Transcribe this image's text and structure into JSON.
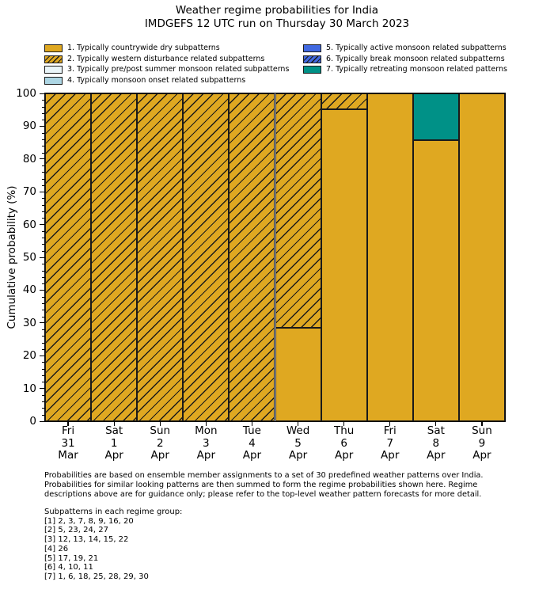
{
  "footnote": "Probabilities are based on ensemble member assignments to a set of 30 predefined weather patterns over India.\nProbabilities for similar looking patterns are then summed to form the regime probabilities shown here. Regime\ndescriptions above are for guidance only; please refer to the top-level weather pattern forecasts for more detail.",
  "subpatterns": "Subpatterns in each regime group:\n[1] 2, 3, 7, 8, 9, 16, 20\n[2] 5, 23, 24, 27\n[3] 12, 13, 14, 15, 22\n[4] 26\n[5] 17, 19, 21\n[6] 4, 10, 11\n[7] 1, 6, 18, 25, 28, 29, 30",
  "chart_data": {
    "type": "bar",
    "stacked": true,
    "title": "Weather regime probabilities for India",
    "subtitle": "IMDGEFS 12 UTC run on Thursday 30 March 2023",
    "ylabel": "Cumulative probability (%)",
    "xlabel": "",
    "ylim": [
      0,
      100
    ],
    "yticks": [
      0,
      10,
      20,
      30,
      40,
      50,
      60,
      70,
      80,
      90,
      100
    ],
    "minor_tick_step": 2,
    "grid": false,
    "legend_position": "above plot, two columns",
    "bar_edge_color": "#1a1a1a",
    "categories": [
      "Fri\n31\nMar",
      "Sat\n1\nApr",
      "Sun\n2\nApr",
      "Mon\n3\nApr",
      "Tue\n4\nApr",
      "Wed\n5\nApr",
      "Thu\n6\nApr",
      "Fri\n7\nApr",
      "Sat\n8\nApr",
      "Sun\n9\nApr"
    ],
    "series": [
      {
        "name": "1. Typically countrywide dry subpatterns",
        "color": "#DFA821",
        "hatch": false,
        "values": [
          0,
          0,
          0,
          0,
          0,
          28.6,
          95.2,
          100,
          85.7,
          100
        ]
      },
      {
        "name": "2. Typically western disturbance related subpatterns",
        "color": "#DFA821",
        "hatch": true,
        "values": [
          100,
          100,
          100,
          100,
          100,
          71.4,
          4.8,
          0,
          0,
          0
        ]
      },
      {
        "name": "3. Typically pre/post summer monsoon related subpatterns",
        "color": "#EAF5F9",
        "hatch": false,
        "values": [
          0,
          0,
          0,
          0,
          0,
          0,
          0,
          0,
          0,
          0
        ]
      },
      {
        "name": "4. Typically monsoon onset related subpatterns",
        "color": "#ADD6E4",
        "hatch": false,
        "values": [
          0,
          0,
          0,
          0,
          0,
          0,
          0,
          0,
          0,
          0
        ]
      },
      {
        "name": "5. Typically active monsoon related subpatterns",
        "color": "#4169E1",
        "hatch": false,
        "values": [
          0,
          0,
          0,
          0,
          0,
          0,
          0,
          0,
          0,
          0
        ]
      },
      {
        "name": "6. Typically break monsoon related subpatterns",
        "color": "#4169E1",
        "hatch": true,
        "values": [
          0,
          0,
          0,
          0,
          0,
          0,
          0,
          0,
          0,
          0
        ]
      },
      {
        "name": "7. Typically retreating monsoon related patterns",
        "color": "#009187",
        "hatch": false,
        "values": [
          0,
          0,
          0,
          0,
          0,
          0,
          0,
          0,
          14.3,
          0
        ]
      }
    ],
    "legend_columns": {
      "left_indices": [
        0,
        1,
        2,
        3
      ],
      "right_indices": [
        4,
        5,
        6
      ]
    }
  }
}
